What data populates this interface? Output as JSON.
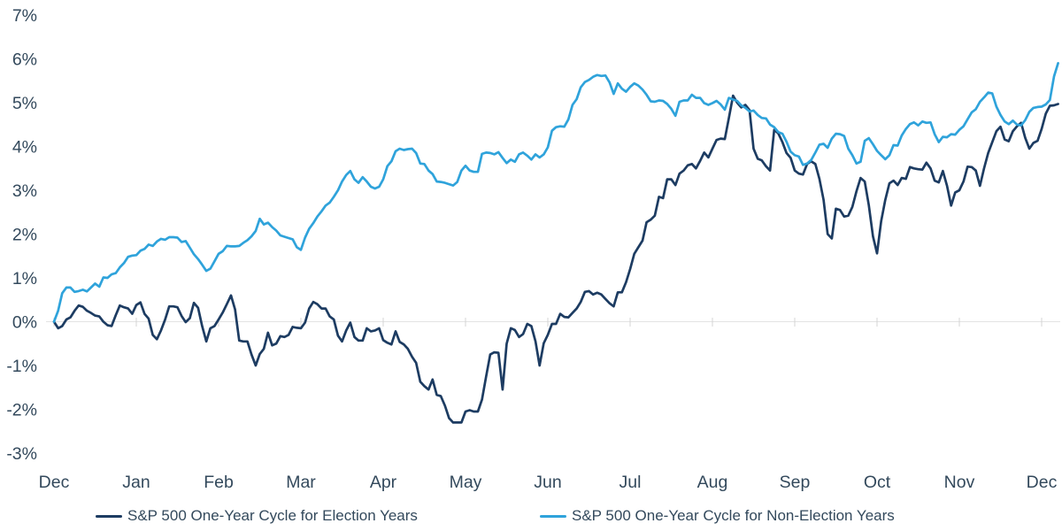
{
  "colors": {
    "background": "#ffffff",
    "text": "#33495c",
    "gridline": "#e3e3e3",
    "tick": "#d6d6d6",
    "election_line": "#1d3c62",
    "non_election_line": "#2fa3db"
  },
  "chart_data": {
    "type": "line",
    "title": "",
    "xlabel": "",
    "ylabel": "",
    "x_unit": "months since start of cycle (Dec to Dec)",
    "x_tick_labels": [
      "Dec",
      "Jan",
      "Feb",
      "Mar",
      "Apr",
      "May",
      "Jun",
      "Jul",
      "Aug",
      "Sep",
      "Oct",
      "Nov",
      "Dec"
    ],
    "y_ticks": [
      7,
      6,
      5,
      4,
      3,
      2,
      1,
      0,
      -1,
      -2,
      -3
    ],
    "y_tick_labels": [
      "7%",
      "6%",
      "5%",
      "4%",
      "3%",
      "2%",
      "1%",
      "0%",
      "-1%",
      "-2%",
      "-3%"
    ],
    "ylim": [
      -3,
      7
    ],
    "xlim_months": [
      0,
      12.2
    ],
    "sample_step_months": 0.05,
    "grid": "horizontal line at 0% only, with small month tick marks on it",
    "legend_position": "bottom",
    "series": [
      {
        "id": "election-years",
        "name": "S&P 500 One-Year Cycle for Election Years",
        "color": "#1d3c62",
        "unit": "percent return",
        "values": [
          0,
          -0.15,
          -0.1,
          0.05,
          0.1,
          0.25,
          0.37,
          0.34,
          0.25,
          0.2,
          0.14,
          0.12,
          0,
          -0.08,
          -0.1,
          0.15,
          0.37,
          0.33,
          0.3,
          0.18,
          0.38,
          0.44,
          0.18,
          0.07,
          -0.3,
          -0.4,
          -0.2,
          0.05,
          0.35,
          0.35,
          0.33,
          0.13,
          -0.01,
          0.08,
          0.43,
          0.32,
          -0.1,
          -0.45,
          -0.15,
          -0.1,
          0.05,
          0.21,
          0.4,
          0.6,
          0.28,
          -0.43,
          -0.45,
          -0.45,
          -0.75,
          -1.0,
          -0.74,
          -0.62,
          -0.25,
          -0.54,
          -0.5,
          -0.33,
          -0.35,
          -0.3,
          -0.12,
          -0.14,
          -0.15,
          -0.02,
          0.3,
          0.45,
          0.4,
          0.3,
          0.3,
          0.12,
          0.05,
          -0.32,
          -0.45,
          -0.2,
          -0.02,
          -0.35,
          -0.43,
          -0.43,
          -0.15,
          -0.22,
          -0.2,
          -0.15,
          -0.42,
          -0.48,
          -0.52,
          -0.22,
          -0.46,
          -0.52,
          -0.62,
          -0.8,
          -0.94,
          -1.37,
          -1.47,
          -1.55,
          -1.32,
          -1.67,
          -1.7,
          -1.92,
          -2.2,
          -2.3,
          -2.3,
          -2.3,
          -2.05,
          -2.02,
          -2.05,
          -2.05,
          -1.78,
          -1.25,
          -0.75,
          -0.7,
          -0.71,
          -1.55,
          -0.5,
          -0.15,
          -0.19,
          -0.35,
          -0.28,
          -0.05,
          -0.1,
          -0.45,
          -1.0,
          -0.49,
          -0.3,
          -0.05,
          -0.05,
          0.18,
          0.11,
          0.1,
          0.2,
          0.3,
          0.45,
          0.68,
          0.7,
          0.62,
          0.66,
          0.62,
          0.52,
          0.42,
          0.35,
          0.67,
          0.67,
          0.9,
          1.2,
          1.55,
          1.7,
          1.85,
          2.27,
          2.33,
          2.42,
          2.85,
          2.82,
          3.25,
          3.25,
          3.12,
          3.38,
          3.45,
          3.57,
          3.6,
          3.5,
          3.67,
          3.86,
          3.75,
          3.95,
          4.15,
          4.18,
          4.17,
          4.65,
          5.16,
          5.0,
          4.89,
          4.95,
          4.83,
          3.95,
          3.72,
          3.68,
          3.55,
          3.45,
          4.38,
          4.3,
          4.1,
          3.85,
          3.74,
          3.45,
          3.38,
          3.36,
          3.6,
          3.66,
          3.6,
          3.26,
          2.78,
          2.0,
          1.9,
          2.58,
          2.55,
          2.4,
          2.42,
          2.62,
          2.98,
          3.28,
          3.2,
          2.66,
          1.95,
          1.56,
          2.3,
          2.78,
          3.16,
          3.22,
          3.12,
          3.28,
          3.26,
          3.53,
          3.5,
          3.48,
          3.47,
          3.63,
          3.5,
          3.22,
          3.18,
          3.44,
          3.1,
          2.65,
          2.95,
          3.0,
          3.2,
          3.54,
          3.53,
          3.45,
          3.1,
          3.5,
          3.85,
          4.1,
          4.35,
          4.45,
          4.16,
          4.12,
          4.35,
          4.46,
          4.54,
          4.2,
          3.95,
          4.08,
          4.13,
          4.4,
          4.75,
          4.93,
          4.94,
          4.97
        ]
      },
      {
        "id": "non-election-years",
        "name": "S&P 500 One-Year Cycle for Non-Election Years",
        "color": "#2fa3db",
        "unit": "percent return",
        "values": [
          0,
          0.25,
          0.65,
          0.78,
          0.78,
          0.68,
          0.7,
          0.73,
          0.69,
          0.78,
          0.87,
          0.8,
          1.01,
          1.0,
          1.08,
          1.11,
          1.24,
          1.34,
          1.48,
          1.51,
          1.52,
          1.62,
          1.66,
          1.76,
          1.73,
          1.83,
          1.89,
          1.87,
          1.93,
          1.93,
          1.92,
          1.82,
          1.84,
          1.69,
          1.54,
          1.43,
          1.3,
          1.16,
          1.21,
          1.38,
          1.55,
          1.61,
          1.73,
          1.72,
          1.72,
          1.73,
          1.8,
          1.86,
          1.95,
          2.07,
          2.35,
          2.22,
          2.26,
          2.16,
          2.08,
          1.97,
          1.94,
          1.91,
          1.88,
          1.7,
          1.64,
          1.92,
          2.12,
          2.25,
          2.4,
          2.52,
          2.65,
          2.72,
          2.85,
          3.0,
          3.2,
          3.35,
          3.44,
          3.25,
          3.17,
          3.3,
          3.2,
          3.08,
          3.04,
          3.08,
          3.25,
          3.55,
          3.66,
          3.89,
          3.95,
          3.92,
          3.94,
          3.95,
          3.85,
          3.61,
          3.6,
          3.45,
          3.37,
          3.2,
          3.19,
          3.17,
          3.14,
          3.11,
          3.19,
          3.45,
          3.56,
          3.45,
          3.42,
          3.42,
          3.83,
          3.86,
          3.85,
          3.82,
          3.87,
          3.74,
          3.62,
          3.7,
          3.65,
          3.82,
          3.86,
          3.79,
          3.7,
          3.82,
          3.75,
          3.82,
          3.98,
          4.36,
          4.44,
          4.46,
          4.45,
          4.62,
          4.95,
          5.08,
          5.35,
          5.47,
          5.52,
          5.59,
          5.63,
          5.61,
          5.62,
          5.46,
          5.2,
          5.44,
          5.32,
          5.25,
          5.36,
          5.44,
          5.39,
          5.3,
          5.18,
          5.03,
          5.02,
          5.05,
          5.04,
          4.97,
          4.86,
          4.7,
          5.02,
          5.05,
          5.05,
          5.18,
          5.11,
          5.11,
          4.99,
          4.95,
          4.99,
          5.04,
          4.96,
          4.84,
          5.11,
          5.07,
          5.04,
          4.94,
          4.88,
          4.8,
          4.82,
          4.72,
          4.65,
          4.64,
          4.5,
          4.44,
          4.33,
          4.29,
          4.11,
          3.88,
          3.8,
          3.77,
          3.58,
          3.61,
          3.69,
          3.86,
          4.04,
          4.06,
          3.97,
          4.18,
          4.29,
          4.28,
          4.24,
          3.95,
          3.8,
          3.61,
          3.65,
          4.13,
          4.19,
          4.05,
          3.9,
          3.8,
          3.71,
          3.8,
          4.03,
          4.02,
          4.25,
          4.4,
          4.51,
          4.55,
          4.48,
          4.57,
          4.54,
          4.55,
          4.28,
          4.1,
          4.22,
          4.21,
          4.28,
          4.27,
          4.38,
          4.46,
          4.62,
          4.78,
          4.85,
          5.02,
          5.12,
          5.23,
          5.21,
          4.91,
          4.72,
          4.57,
          4.51,
          4.59,
          4.5,
          4.48,
          4.6,
          4.79,
          4.88,
          4.9,
          4.91,
          4.96,
          5.06,
          5.6,
          5.9
        ]
      }
    ]
  },
  "legend": {
    "items": [
      {
        "label": "S&P 500 One-Year Cycle for Election Years",
        "color": "#1d3c62"
      },
      {
        "label": "S&P 500 One-Year Cycle for Non-Election Years",
        "color": "#2fa3db"
      }
    ]
  }
}
